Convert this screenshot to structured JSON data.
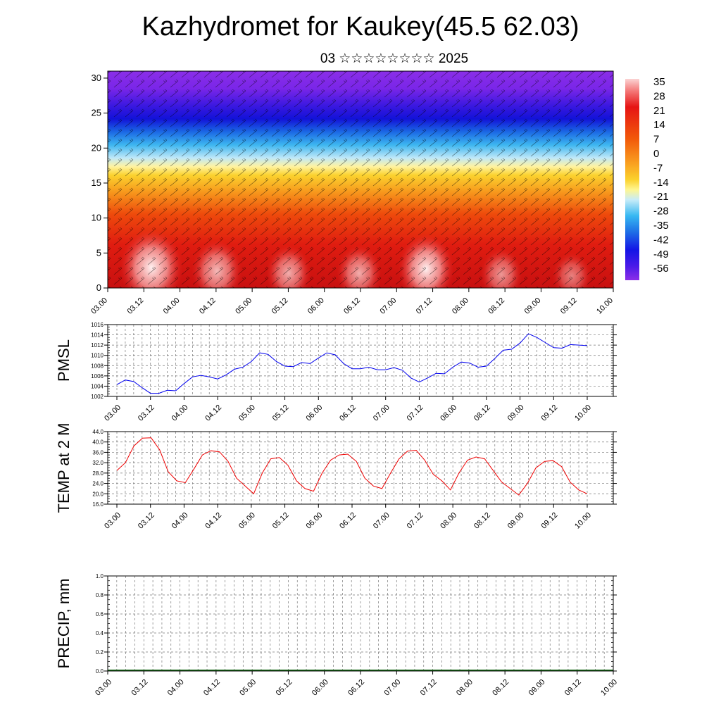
{
  "title": "Kazhydromet for Kaukey(45.5 62.03)",
  "subtitle": "03 ☆☆☆☆☆☆☆☆ 2025",
  "colors": {
    "pmsl_line": "#0000ee",
    "temp_line": "#ee0000",
    "precip_baseline": "#1a6b1a"
  },
  "time_labels": [
    "03.00",
    "03.12",
    "04.00",
    "04.12",
    "05.00",
    "05.12",
    "06.00",
    "06.12",
    "07.00",
    "07.12",
    "08.00",
    "08.12",
    "09.00",
    "09.12",
    "10.00"
  ],
  "chart_data": [
    {
      "type": "heatmap",
      "id": "cross-section",
      "x_labels": [
        "03.00",
        "03.12",
        "04.00",
        "04.12",
        "05.00",
        "05.12",
        "06.00",
        "06.12",
        "07.00",
        "07.12",
        "08.00",
        "08.12",
        "09.00",
        "09.12",
        "10.00"
      ],
      "y_ticks": [
        0,
        5,
        10,
        15,
        20,
        25,
        30
      ],
      "ylim": [
        0,
        31
      ],
      "colorbar_labels": [
        "35",
        "28",
        "21",
        "14",
        "7",
        "0",
        "-7",
        "-14",
        "-21",
        "-28",
        "-35",
        "-42",
        "-49",
        "-56"
      ],
      "colorbar_range": [
        -60,
        38
      ],
      "overlay": "wind barbs"
    },
    {
      "type": "line",
      "id": "pmsl",
      "ylabel": "PMSL",
      "ylim": [
        1002,
        1016
      ],
      "y_ticks": [
        "1002",
        "1004",
        "1006",
        "1008",
        "1010",
        "1012",
        "1014",
        "1016"
      ],
      "x_labels": [
        "03.00",
        "03.12",
        "04.00",
        "04.12",
        "05.00",
        "05.12",
        "06.00",
        "06.12",
        "07.00",
        "07.12",
        "08.00",
        "08.12",
        "09.00",
        "09.12",
        "10.00"
      ],
      "values": [
        1004.3,
        1005.2,
        1004.9,
        1003.7,
        1002.6,
        1002.6,
        1003.2,
        1003.1,
        1004.5,
        1005.8,
        1006.1,
        1005.8,
        1005.4,
        1006.2,
        1007.3,
        1007.7,
        1008.8,
        1010.5,
        1010.2,
        1008.8,
        1007.9,
        1007.8,
        1008.6,
        1008.4,
        1009.5,
        1010.5,
        1010.1,
        1008.4,
        1007.4,
        1007.4,
        1007.7,
        1007.2,
        1007.2,
        1007.6,
        1007.1,
        1005.6,
        1004.8,
        1005.6,
        1006.5,
        1006.4,
        1007.7,
        1008.7,
        1008.5,
        1007.7,
        1007.9,
        1009.4,
        1011.0,
        1011.2,
        1012.4,
        1014.2,
        1013.5,
        1012.5,
        1011.5,
        1011.4,
        1012.1,
        1012.0,
        1011.9
      ],
      "color": "#0000ee"
    },
    {
      "type": "line",
      "id": "temp",
      "ylabel": "TEMP at 2 M",
      "ylim": [
        16,
        44
      ],
      "y_ticks": [
        "16.0",
        "20.0",
        "24.0",
        "28.0",
        "32.0",
        "36.0",
        "40.0",
        "44.0"
      ],
      "x_labels": [
        "03.00",
        "03.12",
        "04.00",
        "04.12",
        "05.00",
        "05.12",
        "06.00",
        "06.12",
        "07.00",
        "07.12",
        "08.00",
        "08.12",
        "09.00",
        "09.12",
        "10.00"
      ],
      "values": [
        29.0,
        32.0,
        38.5,
        41.5,
        41.6,
        37.0,
        28.5,
        25.0,
        24.3,
        29.5,
        35.0,
        36.6,
        36.2,
        32.5,
        26.0,
        23.0,
        20.0,
        28.0,
        33.5,
        34.0,
        31.0,
        25.0,
        22.0,
        21.0,
        28.0,
        33.0,
        35.0,
        35.3,
        32.5,
        26.0,
        23.0,
        22.0,
        28.0,
        33.5,
        36.5,
        36.8,
        33.0,
        27.5,
        25.0,
        21.5,
        28.0,
        33.0,
        34.2,
        33.5,
        29.0,
        24.5,
        22.0,
        19.5,
        24.0,
        30.0,
        32.5,
        32.8,
        30.5,
        24.5,
        21.5,
        20.0
      ],
      "color": "#ee0000"
    },
    {
      "type": "bar",
      "id": "precip",
      "ylabel": "PRECIP, mm",
      "ylim": [
        0,
        1
      ],
      "y_ticks": [
        "0.0",
        "0.2",
        "0.4",
        "0.6",
        "0.8",
        "1.0"
      ],
      "x_labels": [
        "03.00",
        "03.12",
        "04.00",
        "04.12",
        "05.00",
        "05.12",
        "06.00",
        "06.12",
        "07.00",
        "07.12",
        "08.00",
        "08.12",
        "09.00",
        "09.12",
        "10.00"
      ],
      "values": [
        0,
        0,
        0,
        0,
        0,
        0,
        0,
        0,
        0,
        0,
        0,
        0,
        0,
        0,
        0,
        0,
        0,
        0,
        0,
        0,
        0,
        0,
        0,
        0,
        0,
        0,
        0,
        0,
        0,
        0,
        0,
        0,
        0,
        0,
        0,
        0,
        0,
        0,
        0,
        0,
        0,
        0,
        0,
        0,
        0,
        0,
        0,
        0,
        0,
        0,
        0,
        0,
        0,
        0,
        0,
        0,
        0
      ]
    }
  ]
}
